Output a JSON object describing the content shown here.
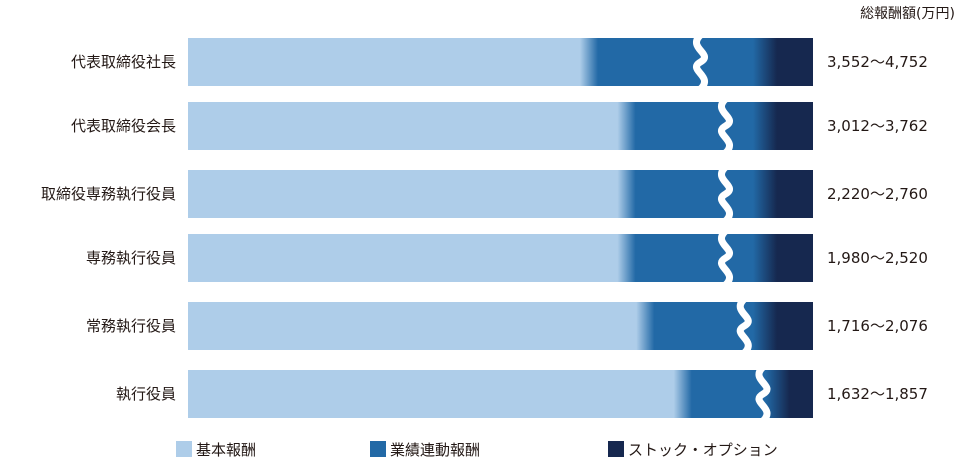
{
  "chart_data": {
    "type": "bar",
    "orientation": "horizontal",
    "stacked": true,
    "unit_label": "総報酬額(万円)",
    "categories": [
      "代表取締役社長",
      "代表取締役会長",
      "取締役専務執行役員",
      "専務執行役員",
      "常務執行役員",
      "執行役員"
    ],
    "value_labels": [
      "3,552〜4,752",
      "3,012〜3,762",
      "2,220〜2,760",
      "1,980〜2,520",
      "1,716〜2,076",
      "1,632〜1,857"
    ],
    "series": [
      {
        "name": "基本報酬",
        "values": [
          0.64,
          0.7,
          0.7,
          0.7,
          0.73,
          0.79
        ]
      },
      {
        "name": "業績連動報酬",
        "values": [
          0.28,
          0.22,
          0.22,
          0.22,
          0.19,
          0.15
        ]
      },
      {
        "name": "ストック・オプション",
        "values": [
          0.08,
          0.08,
          0.08,
          0.08,
          0.08,
          0.06
        ]
      }
    ],
    "break_position": [
      0.82,
      0.86,
      0.86,
      0.86,
      0.89,
      0.92
    ],
    "colors": {
      "base": "#aecde9",
      "performance": "#2269a6",
      "stock": "#16284f"
    },
    "legend_position": "bottom"
  }
}
